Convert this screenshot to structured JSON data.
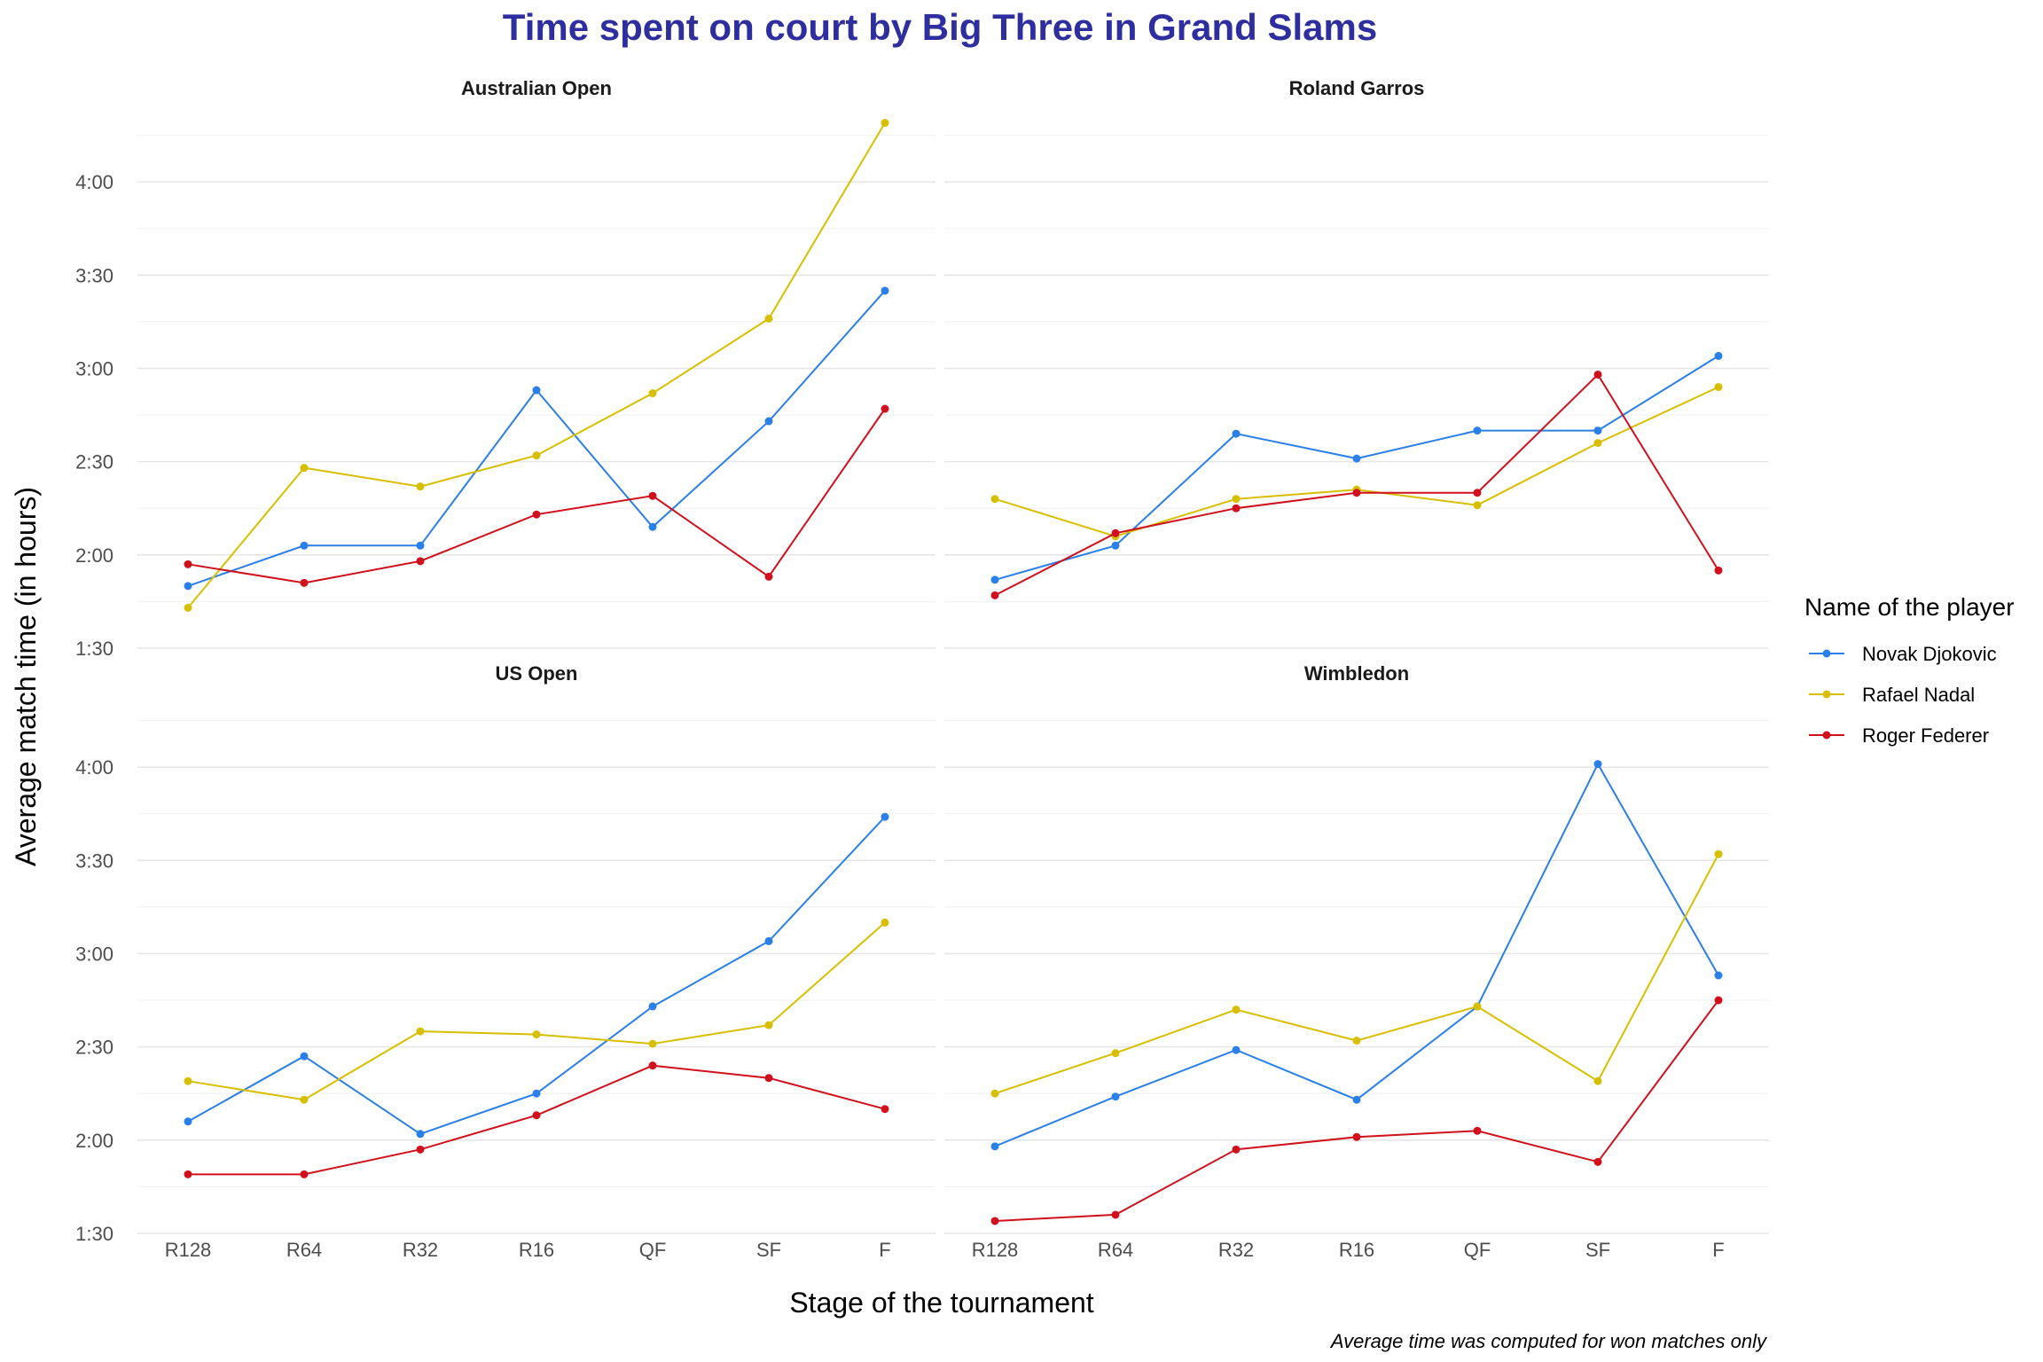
{
  "chart_data": {
    "type": "line",
    "title": "Time spent on court by Big Three in Grand Slams",
    "xlabel": "Stage of the tournament",
    "ylabel": "Average match time (in hours)",
    "caption": "Average time was computed for won matches only",
    "legend_title": "Name of the player",
    "legend_position": "right",
    "categories": [
      "R128",
      "R64",
      "R32",
      "R16",
      "QF",
      "SF",
      "F"
    ],
    "y_ticks": [
      {
        "value": 90,
        "label": "1:30"
      },
      {
        "value": 120,
        "label": "2:00"
      },
      {
        "value": 150,
        "label": "2:30"
      },
      {
        "value": 180,
        "label": "3:00"
      },
      {
        "value": 210,
        "label": "3:30"
      },
      {
        "value": 240,
        "label": "4:00"
      }
    ],
    "y_unit": "minutes",
    "ylim": [
      86,
      260
    ],
    "grid": true,
    "players": [
      {
        "name": "Novak Djokovic",
        "color": "#2a7fe8"
      },
      {
        "name": "Rafael Nadal",
        "color": "#d7bf00"
      },
      {
        "name": "Roger Federer",
        "color": "#d0101c"
      }
    ],
    "panels": [
      {
        "title": "Australian Open",
        "series": [
          {
            "name": "Novak Djokovic",
            "values": [
              110,
              123,
              123,
              173,
              129,
              163,
              205
            ]
          },
          {
            "name": "Rafael Nadal",
            "values": [
              103,
              148,
              142,
              152,
              172,
              196,
              259
            ]
          },
          {
            "name": "Roger Federer",
            "values": [
              117,
              111,
              118,
              133,
              139,
              113,
              167
            ]
          }
        ]
      },
      {
        "title": "Roland Garros",
        "series": [
          {
            "name": "Novak Djokovic",
            "values": [
              112,
              123,
              159,
              151,
              160,
              160,
              184
            ]
          },
          {
            "name": "Rafael Nadal",
            "values": [
              138,
              126,
              138,
              141,
              136,
              156,
              174
            ]
          },
          {
            "name": "Roger Federer",
            "values": [
              107,
              127,
              135,
              140,
              140,
              178,
              115
            ]
          }
        ]
      },
      {
        "title": "US Open",
        "series": [
          {
            "name": "Novak Djokovic",
            "values": [
              126,
              147,
              122,
              135,
              163,
              184,
              224
            ]
          },
          {
            "name": "Rafael Nadal",
            "values": [
              139,
              133,
              155,
              154,
              151,
              157,
              190
            ]
          },
          {
            "name": "Roger Federer",
            "values": [
              109,
              109,
              117,
              128,
              144,
              140,
              130
            ]
          }
        ]
      },
      {
        "title": "Wimbledon",
        "series": [
          {
            "name": "Novak Djokovic",
            "values": [
              118,
              134,
              149,
              133,
              163,
              241,
              173
            ]
          },
          {
            "name": "Rafael Nadal",
            "values": [
              135,
              148,
              162,
              152,
              163,
              139,
              212
            ]
          },
          {
            "name": "Roger Federer",
            "values": [
              94,
              96,
              117,
              121,
              123,
              113,
              165
            ]
          }
        ]
      }
    ]
  }
}
